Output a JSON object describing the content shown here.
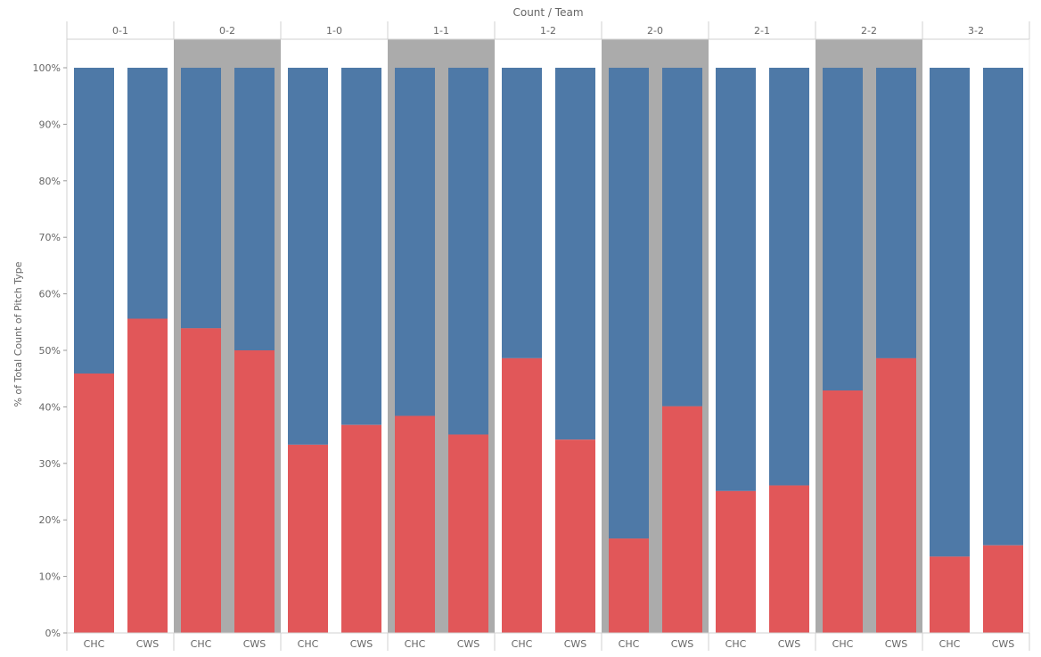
{
  "chart_data": {
    "type": "bar",
    "stacked": true,
    "title": "Count / Team",
    "xlabel": "",
    "ylabel": "% of Total Count of Pitch Type",
    "ylim": [
      0,
      100
    ],
    "yticks": [
      "0%",
      "10%",
      "20%",
      "30%",
      "40%",
      "50%",
      "60%",
      "70%",
      "80%",
      "90%",
      "100%"
    ],
    "groups": [
      "0-1",
      "0-2",
      "1-0",
      "1-1",
      "1-2",
      "2-0",
      "2-1",
      "2-2",
      "3-2"
    ],
    "highlighted_groups": [
      "0-2",
      "1-1",
      "2-0",
      "2-2"
    ],
    "categories": [
      "CHC",
      "CWS"
    ],
    "series": [
      {
        "name": "bottom",
        "color": "#e15759",
        "values": [
          [
            45.9,
            55.6
          ],
          [
            53.9,
            50.0
          ],
          [
            33.3,
            36.8
          ],
          [
            38.4,
            35.1
          ],
          [
            48.6,
            34.2
          ],
          [
            16.7,
            40.1
          ],
          [
            25.1,
            26.1
          ],
          [
            42.9,
            48.6
          ],
          [
            13.5,
            15.5
          ]
        ]
      },
      {
        "name": "top",
        "color": "#4e79a7",
        "values": [
          [
            54.1,
            44.4
          ],
          [
            46.1,
            50.0
          ],
          [
            66.7,
            63.2
          ],
          [
            61.6,
            64.9
          ],
          [
            51.4,
            65.8
          ],
          [
            83.3,
            59.9
          ],
          [
            74.9,
            73.9
          ],
          [
            57.1,
            51.4
          ],
          [
            86.5,
            84.5
          ]
        ]
      }
    ],
    "legend": "none",
    "grid": false,
    "highlight_color": "#ababab",
    "axis_color": "#d0d0d0"
  }
}
